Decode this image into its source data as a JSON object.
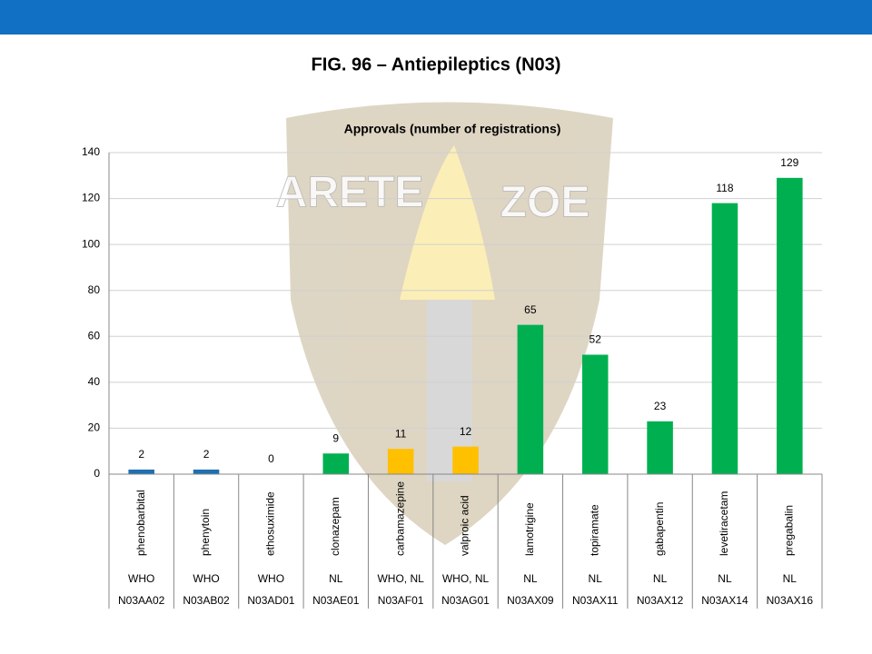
{
  "header_title": "FIG. 96 – Antiepileptics (N03)",
  "watermark": [
    "ARETE",
    "ZOE"
  ],
  "chart_data": {
    "type": "bar",
    "title": "Approvals (number of registrations)",
    "categories": [
      "phenobarbital",
      "phenytoin",
      "ethosuximide",
      "clonazepam",
      "carbamazepine",
      "valproic acid",
      "lamotrigine",
      "topiramate",
      "gabapentin",
      "levetiracetam",
      "pregabalin"
    ],
    "groups": [
      "WHO",
      "WHO",
      "WHO",
      "NL",
      "WHO, NL",
      "WHO, NL",
      "NL",
      "NL",
      "NL",
      "NL",
      "NL"
    ],
    "codes": [
      "N03AA02",
      "N03AB02",
      "N03AD01",
      "N03AE01",
      "N03AF01",
      "N03AG01",
      "N03AX09",
      "N03AX11",
      "N03AX12",
      "N03AX14",
      "N03AX16"
    ],
    "values": [
      2,
      2,
      0,
      9,
      11,
      12,
      65,
      52,
      23,
      118,
      129
    ],
    "colors": [
      "#1f6fb2",
      "#1f6fb2",
      "#1f6fb2",
      "#00b050",
      "#ffc000",
      "#ffc000",
      "#00b050",
      "#00b050",
      "#00b050",
      "#00b050",
      "#00b050"
    ],
    "ylim": [
      0,
      140
    ],
    "yticks": [
      0,
      20,
      40,
      60,
      80,
      100,
      120,
      140
    ],
    "grid": true
  }
}
